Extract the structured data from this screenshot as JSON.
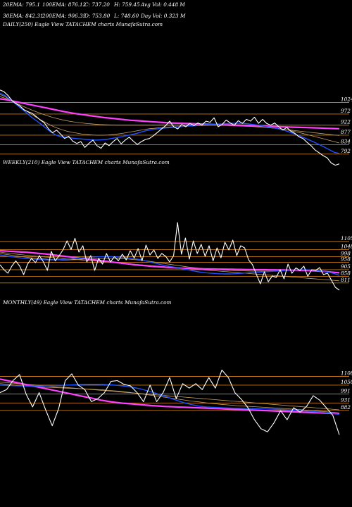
{
  "header": {
    "row1": [
      {
        "label": "20EMA: 795.1"
      },
      {
        "label": "100EMA: 876.12"
      },
      {
        "label": "C: 737.20"
      },
      {
        "label": "H: 759.45"
      },
      {
        "label": "Avg Vol: 0.448  M"
      }
    ],
    "row2": [
      {
        "label": "30EMA: 842.31"
      },
      {
        "label": "200EMA: 906.35"
      },
      {
        "label": "O: 753.80"
      },
      {
        "label": "L: 748.60"
      },
      {
        "label": "Day Vol: 0.323  M"
      }
    ]
  },
  "colors": {
    "background": "#000000",
    "price": "#ffffff",
    "ema20": "#1e50ff",
    "ema200": "#ff40ff",
    "ema_other": "#c8a060",
    "level_line": "#c87814"
  },
  "chart_data": [
    {
      "type": "line",
      "title": "DAILY(250) Eagle  View  TATACHEM charts MunafaSutra.com",
      "levels": [
        "1024",
        "972",
        "922",
        "877",
        "834",
        "792"
      ],
      "level_values": [
        1024,
        972,
        922,
        877,
        834,
        792
      ],
      "ylim": [
        725,
        1130
      ],
      "price": [
        1080,
        1072,
        1055,
        1032,
        1018,
        1008,
        990,
        982,
        975,
        960,
        945,
        932,
        905,
        888,
        900,
        882,
        862,
        872,
        850,
        840,
        848,
        822,
        840,
        855,
        830,
        818,
        842,
        830,
        848,
        862,
        838,
        855,
        868,
        850,
        835,
        848,
        858,
        862,
        875,
        890,
        905,
        920,
        940,
        915,
        905,
        925,
        915,
        930,
        920,
        932,
        922,
        940,
        935,
        955,
        915,
        925,
        945,
        932,
        922,
        942,
        930,
        948,
        940,
        958,
        930,
        948,
        930,
        922,
        932,
        915,
        900,
        912,
        895,
        885,
        870,
        862,
        845,
        830,
        810,
        798,
        785,
        775,
        752,
        742,
        748
      ],
      "ema20": [
        1065,
        1055,
        1038,
        1020,
        1000,
        982,
        962,
        945,
        928,
        910,
        892,
        878,
        870,
        868,
        865,
        862,
        860,
        858,
        856,
        855,
        856,
        858,
        862,
        866,
        870,
        875,
        880,
        885,
        892,
        898,
        902,
        905,
        908,
        910,
        912,
        914,
        916,
        918,
        920,
        922,
        924,
        925,
        926,
        927,
        928,
        929,
        930,
        931,
        930,
        928,
        925,
        922,
        918,
        914,
        910,
        905,
        900,
        892,
        884,
        875,
        866,
        856,
        846,
        835,
        824,
        812,
        800,
        795
      ],
      "ema_other": [
        [
          1060,
          1050,
          1035,
          1018,
          1002,
          988,
          972,
          958,
          945,
          932,
          920,
          910,
          902,
          895,
          890,
          886,
          882,
          880,
          878,
          877,
          877,
          878,
          880,
          883,
          886,
          890,
          894,
          898,
          902,
          906,
          908,
          910,
          912,
          914,
          915,
          916,
          917,
          918,
          919,
          920,
          921,
          922,
          922,
          923,
          923,
          924,
          924,
          924,
          923,
          922,
          920,
          918,
          915,
          912,
          908,
          904,
          900,
          895,
          890,
          884,
          878,
          872,
          866,
          860,
          854,
          848,
          842
        ],
        [
          1050,
          1042,
          1030,
          1018,
          1006,
          995,
          984,
          974,
          965,
          957,
          950,
          944,
          939,
          935,
          932,
          929,
          927,
          925,
          924,
          923,
          922,
          922,
          922,
          922,
          922,
          922,
          922,
          922,
          922,
          922,
          922,
          922,
          922,
          922,
          922,
          922,
          922,
          922,
          921,
          920,
          919,
          918,
          917,
          916,
          914,
          912,
          910,
          908,
          905,
          902,
          899,
          896,
          893,
          890,
          887,
          884,
          881,
          878,
          876
        ]
      ],
      "ema200": [
        1040,
        1036,
        1030,
        1024,
        1018,
        1012,
        1006,
        1000,
        994,
        988,
        982,
        977,
        972,
        968,
        964,
        960,
        956,
        953,
        950,
        947,
        944,
        942,
        940,
        938,
        936,
        934,
        932,
        931,
        930,
        929,
        928,
        927,
        926,
        925,
        924,
        923,
        922,
        921,
        920,
        919,
        918,
        917,
        916,
        915,
        914,
        913,
        912,
        911,
        910,
        909,
        908,
        907,
        906
      ]
    },
    {
      "type": "line",
      "title": "WEEKLY(210) Eagle  View  TATACHEM charts MunafaSutra.com",
      "levels": [
        "1105",
        "1048",
        "998",
        "958",
        "905",
        "858",
        "811"
      ],
      "level_values": [
        1105,
        1048,
        998,
        958,
        905,
        858,
        811
      ],
      "ylim": [
        740,
        1290
      ],
      "price": [
        940,
        905,
        880,
        930,
        968,
        930,
        870,
        945,
        985,
        955,
        1005,
        960,
        900,
        1035,
        968,
        1005,
        1048,
        1110,
        1048,
        1128,
        1030,
        1075,
        960,
        1005,
        900,
        985,
        945,
        1020,
        960,
        998,
        968,
        1015,
        975,
        1040,
        988,
        1055,
        968,
        1080,
        1010,
        1045,
        985,
        1020,
        1000,
        960,
        1005,
        1240,
        1015,
        1130,
        980,
        1110,
        1020,
        1085,
        1000,
        1075,
        968,
        1060,
        990,
        1100,
        1045,
        1115,
        1005,
        1075,
        1060,
        975,
        940,
        870,
        805,
        890,
        820,
        860,
        850,
        905,
        840,
        945,
        880,
        918,
        900,
        930,
        858,
        905,
        900,
        920,
        870,
        880,
        830,
        780,
        760
      ],
      "ema20": [
        1010,
        1005,
        1000,
        996,
        992,
        988,
        985,
        982,
        980,
        978,
        976,
        975,
        975,
        976,
        978,
        980,
        982,
        985,
        988,
        990,
        992,
        994,
        996,
        997,
        998,
        998,
        997,
        995,
        993,
        990,
        986,
        981,
        975,
        968,
        960,
        952,
        945,
        938,
        932,
        926,
        920,
        914,
        908,
        902,
        896,
        890,
        886,
        882,
        880,
        878,
        876,
        875,
        875,
        876,
        878,
        880,
        882,
        884,
        886,
        888,
        890,
        892,
        894,
        896,
        898,
        900,
        902,
        903,
        904,
        905,
        904,
        902,
        899,
        895,
        890,
        884,
        876,
        866
      ],
      "ema_other": [
        [
          1020,
          1015,
          1010,
          1005,
          1000,
          996,
          992,
          988,
          985,
          982,
          979,
          977,
          975,
          974,
          974,
          975,
          976,
          978,
          980,
          982,
          983,
          984,
          985,
          985,
          985,
          984,
          982,
          980,
          977,
          974,
          970,
          966,
          961,
          956,
          951,
          946,
          941,
          936,
          931,
          926,
          922,
          918,
          914,
          911,
          908,
          906,
          904,
          902,
          900,
          899,
          898,
          897,
          896,
          895,
          895,
          895,
          895,
          896,
          897,
          898,
          899,
          900,
          900,
          900,
          900,
          899,
          898,
          896,
          894,
          891,
          888,
          884
        ],
        [
          1030,
          1025,
          1020,
          1016,
          1012,
          1008,
          1004,
          1000,
          997,
          994,
          991,
          988,
          985,
          982,
          979,
          976,
          973,
          970,
          967,
          964,
          961,
          958,
          955,
          952,
          949,
          946,
          943,
          940,
          937,
          934,
          931,
          928,
          925,
          922,
          919,
          916,
          913,
          910,
          907,
          904,
          901,
          898,
          895,
          892,
          889,
          886,
          883,
          880,
          877,
          874,
          871,
          868,
          865,
          862,
          859,
          856,
          853,
          850,
          847,
          844,
          841,
          838,
          835,
          832,
          829,
          826
        ]
      ],
      "ema200": [
        1040,
        1038,
        1036,
        1034,
        1032,
        1030,
        1028,
        1025,
        1022,
        1019,
        1016,
        1012,
        1008,
        1004,
        1000,
        996,
        992,
        988,
        984,
        980,
        976,
        972,
        968,
        964,
        960,
        956,
        952,
        948,
        944,
        940,
        937,
        934,
        931,
        928,
        926,
        924,
        922,
        920,
        918,
        916,
        915,
        914,
        913,
        912,
        911,
        910,
        910,
        909,
        909,
        908,
        908,
        907,
        907,
        906,
        906,
        905,
        905,
        905,
        904,
        904,
        903,
        903,
        902,
        902,
        901,
        900,
        899,
        898,
        896,
        894,
        892,
        889,
        886,
        883
      ]
    },
    {
      "type": "line",
      "title": "MONTHLY(49) Eagle  View  TATACHEM charts MunafaSutra.com",
      "levels": [
        "1108",
        "1050",
        "991",
        "931",
        "882"
      ],
      "level_values": [
        1108,
        1050,
        991,
        931,
        882
      ],
      "ylim": [
        680,
        1260
      ],
      "price": [
        1000,
        1020,
        1080,
        1120,
        990,
        905,
        1000,
        885,
        780,
        895,
        1080,
        1125,
        1050,
        1020,
        940,
        960,
        1000,
        1075,
        1080,
        1055,
        1045,
        1000,
        940,
        1050,
        940,
        1000,
        1100,
        960,
        1060,
        1030,
        1060,
        1020,
        1100,
        1030,
        1150,
        1100,
        1000,
        955,
        900,
        820,
        760,
        740,
        800,
        880,
        820,
        900,
        870,
        910,
        980,
        950,
        900,
        850,
        720
      ],
      "ema20": [
        1050,
        1048,
        1046,
        1045,
        1044,
        1044,
        1045,
        1046,
        1048,
        1050,
        1052,
        1054,
        1055,
        1055,
        1054,
        1052,
        1048,
        1042,
        1035,
        1025,
        1012,
        998,
        982,
        965,
        948,
        932,
        920,
        910,
        905,
        902,
        900,
        898,
        896,
        895,
        894,
        893,
        892,
        890,
        888,
        886,
        884,
        880,
        876,
        872,
        868,
        862,
        855
      ],
      "ema_other": [
        [
          1060,
          1055,
          1050,
          1046,
          1042,
          1039,
          1036,
          1034,
          1032,
          1030,
          1028,
          1026,
          1024,
          1021,
          1018,
          1014,
          1010,
          1005,
          999,
          993,
          986,
          979,
          972,
          965,
          958,
          951,
          944,
          938,
          932,
          927,
          922,
          918,
          914,
          911,
          908,
          905,
          902,
          899,
          896,
          893,
          890,
          886,
          882,
          878,
          874,
          870,
          865
        ],
        [
          1070,
          1066,
          1062,
          1058,
          1054,
          1050,
          1046,
          1042,
          1038,
          1034,
          1030,
          1026,
          1022,
          1018,
          1014,
          1010,
          1006,
          1002,
          998,
          994,
          990,
          986,
          982,
          978,
          974,
          970,
          966,
          962,
          958,
          954,
          950,
          946,
          942,
          938,
          934,
          930,
          926,
          922,
          918,
          914,
          910,
          906,
          902,
          898,
          894,
          890,
          886
        ]
      ],
      "ema200": [
        1090,
        1080,
        1070,
        1060,
        1050,
        1040,
        1030,
        1020,
        1010,
        1000,
        990,
        980,
        970,
        960,
        950,
        942,
        935,
        930,
        926,
        922,
        918,
        914,
        911,
        908,
        906,
        904,
        902,
        900,
        898,
        896,
        894,
        892,
        890,
        888,
        886,
        884,
        882,
        880,
        878,
        876,
        874,
        872,
        870,
        868,
        866,
        864,
        862,
        860
      ]
    }
  ]
}
